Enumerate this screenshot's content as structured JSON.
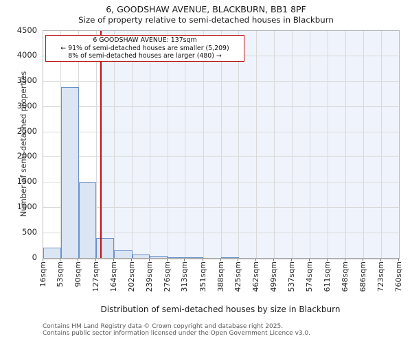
{
  "page": {
    "title": "6, GOODSHAW AVENUE, BLACKBURN, BB1 8PF",
    "subtitle": "Size of property relative to semi-detached houses in Blackburn",
    "footer_line1": "Contains HM Land Registry data © Crown copyright and database right 2025.",
    "footer_line2": "Contains public sector information licensed under the Open Government Licence v3.0."
  },
  "annotation": {
    "line1": "6 GOODSHAW AVENUE: 137sqm",
    "line2": "← 91% of semi-detached houses are smaller (5,209)",
    "line3": "8% of semi-detached houses are larger (480) →"
  },
  "chart_data": {
    "type": "bar",
    "title": "6, GOODSHAW AVENUE, BLACKBURN, BB1 8PF",
    "subtitle": "Size of property relative to semi-detached houses in Blackburn",
    "xlabel": "Distribution of semi-detached houses by size in Blackburn",
    "ylabel": "Number of semi-detached properties",
    "bin_edges_sqm": [
      16,
      53,
      90,
      127,
      164,
      202,
      239,
      276,
      313,
      351,
      388,
      425,
      462,
      499,
      537,
      574,
      611,
      648,
      686,
      723,
      760
    ],
    "x_tick_labels": [
      "16sqm",
      "53sqm",
      "90sqm",
      "127sqm",
      "164sqm",
      "202sqm",
      "239sqm",
      "276sqm",
      "313sqm",
      "351sqm",
      "388sqm",
      "425sqm",
      "462sqm",
      "499sqm",
      "537sqm",
      "574sqm",
      "611sqm",
      "648sqm",
      "686sqm",
      "723sqm",
      "760sqm"
    ],
    "values": [
      200,
      3380,
      1490,
      390,
      150,
      70,
      35,
      18,
      15,
      0,
      12,
      0,
      0,
      0,
      0,
      0,
      0,
      0,
      0,
      0
    ],
    "ylim": [
      0,
      4500
    ],
    "y_ticks": [
      0,
      500,
      1000,
      1500,
      2000,
      2500,
      3000,
      3500,
      4000,
      4500
    ],
    "marker_sqm": 137,
    "marker_label": "6 GOODSHAW AVENUE: 137sqm",
    "smaller_pct": "91%",
    "smaller_count": "5,209",
    "larger_pct": "8%",
    "larger_count": "480",
    "grid": true,
    "legend": "none",
    "colors": {
      "bar_fill": "#dbe5f4",
      "bar_edge": "#6991c9",
      "marker_line": "#bb1111",
      "annotation_border": "#bb1111",
      "shade_right_of_marker": "#eff3fb",
      "gridline": "#d9d9d9"
    }
  }
}
